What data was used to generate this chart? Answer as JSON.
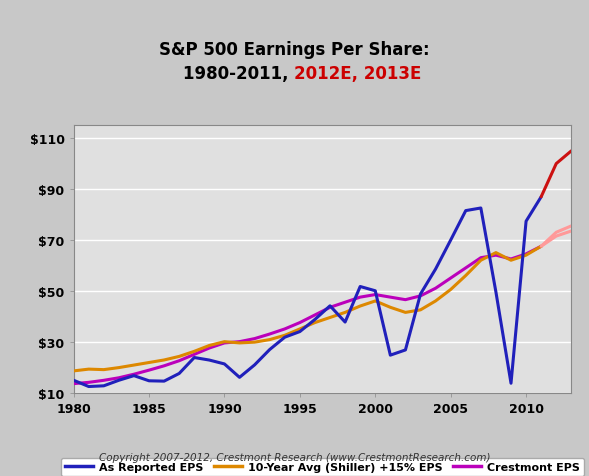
{
  "title_line1": "S&P 500 Earnings Per Share:",
  "copyright": "Copyright 2007-2012, Crestmont Research (www.CrestmontResearch.com)",
  "bg_outer": "#c8c8c8",
  "bg_plot": "#e0e0e0",
  "xlim": [
    1980,
    2013
  ],
  "ylim": [
    10,
    115
  ],
  "yticks": [
    10,
    30,
    50,
    70,
    90,
    110
  ],
  "ytick_labels": [
    "$10",
    "$30",
    "$50",
    "$70",
    "$90",
    "$110"
  ],
  "xticks": [
    1980,
    1985,
    1990,
    1995,
    2000,
    2005,
    2010
  ],
  "as_reported_x": [
    1980,
    1981,
    1982,
    1983,
    1984,
    1985,
    1986,
    1987,
    1988,
    1989,
    1990,
    1991,
    1992,
    1993,
    1994,
    1995,
    1996,
    1997,
    1998,
    1999,
    2000,
    2001,
    2002,
    2003,
    2004,
    2005,
    2006,
    2007,
    2008,
    2009,
    2010,
    2011,
    2012,
    2013
  ],
  "as_reported_y": [
    14.82,
    12.36,
    12.64,
    14.82,
    16.64,
    14.61,
    14.48,
    17.5,
    23.76,
    22.76,
    21.24,
    15.97,
    20.87,
    26.9,
    31.75,
    33.96,
    38.73,
    44.09,
    37.7,
    51.68,
    50.0,
    24.69,
    26.74,
    48.74,
    58.55,
    69.93,
    81.51,
    82.54,
    49.51,
    13.65,
    77.35,
    86.95,
    100.0,
    105.0
  ],
  "shiller_x": [
    1980,
    1981,
    1982,
    1983,
    1984,
    1985,
    1986,
    1987,
    1988,
    1989,
    1990,
    1991,
    1992,
    1993,
    1994,
    1995,
    1996,
    1997,
    1998,
    1999,
    2000,
    2001,
    2002,
    2003,
    2004,
    2005,
    2006,
    2007,
    2008,
    2009,
    2010,
    2011,
    2012,
    2013
  ],
  "shiller_y": [
    18.5,
    19.2,
    19.0,
    19.8,
    20.8,
    21.8,
    22.8,
    24.2,
    26.2,
    28.5,
    30.0,
    29.5,
    29.8,
    30.8,
    32.5,
    35.0,
    37.5,
    39.5,
    41.5,
    44.0,
    46.0,
    43.5,
    41.5,
    42.5,
    46.0,
    50.5,
    56.0,
    62.0,
    65.0,
    62.0,
    64.0,
    67.5,
    73.0,
    75.5
  ],
  "crestmont_x": [
    1980,
    1981,
    1982,
    1983,
    1984,
    1985,
    1986,
    1987,
    1988,
    1989,
    1990,
    1991,
    1992,
    1993,
    1994,
    1995,
    1996,
    1997,
    1998,
    1999,
    2000,
    2001,
    2002,
    2003,
    2004,
    2005,
    2006,
    2007,
    2008,
    2009,
    2010,
    2011,
    2012,
    2013
  ],
  "crestmont_y": [
    13.5,
    14.0,
    14.8,
    15.8,
    17.2,
    18.8,
    20.5,
    22.5,
    25.0,
    27.5,
    29.5,
    30.0,
    31.2,
    33.0,
    35.0,
    37.5,
    40.5,
    43.5,
    45.5,
    47.5,
    48.5,
    47.5,
    46.5,
    48.0,
    51.0,
    55.0,
    59.0,
    63.0,
    64.0,
    62.5,
    64.5,
    67.5,
    71.5,
    73.5
  ],
  "color_as_reported": "#2020bb",
  "color_shiller": "#dd8800",
  "color_crestmont": "#bb00bb",
  "color_estimate": "#cc1111",
  "estimate_start_year": 2011,
  "legend_labels": [
    "As Reported EPS",
    "10-Year Avg (Shiller) +15% EPS",
    "Crestmont EPS"
  ],
  "legend_colors": [
    "#2020bb",
    "#dd8800",
    "#bb00bb"
  ],
  "lw": 2.2
}
